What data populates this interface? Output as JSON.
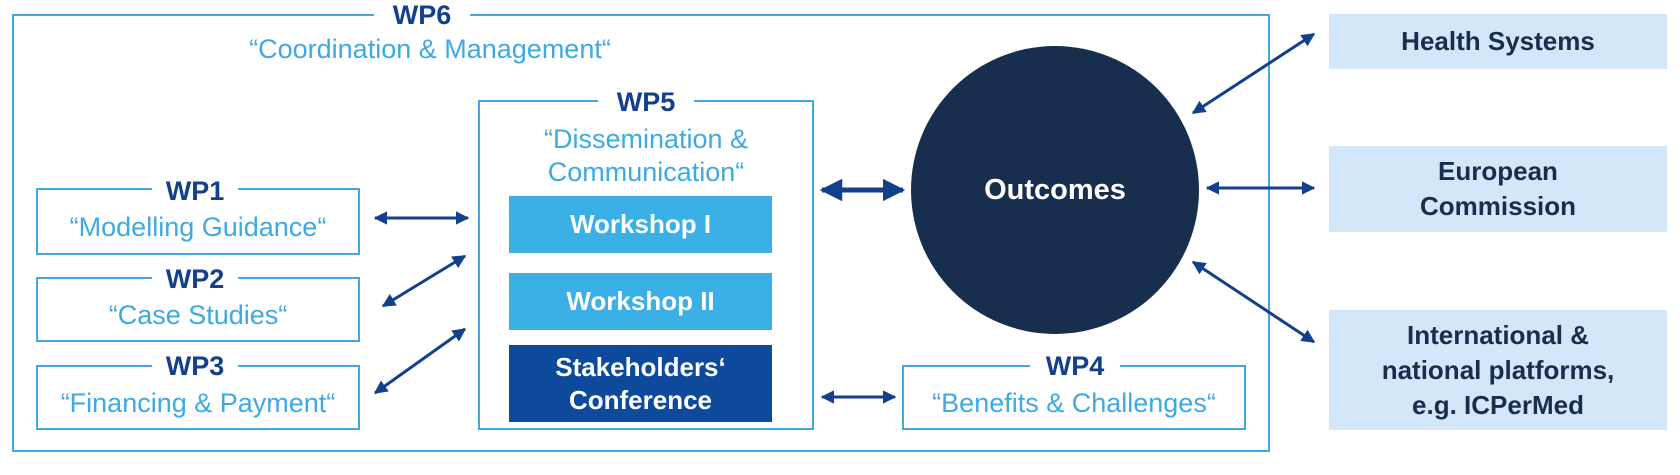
{
  "colors": {
    "light_blue": "#3ea9e3",
    "navy": "#12408c",
    "dark_navy": "#172e4e",
    "pale_blue": "#d3e7f8",
    "workshop_blue": "#3ab0e6",
    "conference_blue": "#0d4a9b"
  },
  "wp6": {
    "title": "WP6",
    "subtitle": "“Coordination & Management“"
  },
  "wp1": {
    "title": "WP1",
    "subtitle": "“Modelling Guidance“"
  },
  "wp2": {
    "title": "WP2",
    "subtitle": "“Case Studies“"
  },
  "wp3": {
    "title": "WP3",
    "subtitle": "“Financing & Payment“"
  },
  "wp5": {
    "title": "WP5",
    "subtitle_line1": "“Dissemination &",
    "subtitle_line2": "Communication“",
    "workshop1": "Workshop I",
    "workshop2": "Workshop II",
    "conference_line1": "Stakeholders‘",
    "conference_line2": "Conference"
  },
  "wp4": {
    "title": "WP4",
    "subtitle": "“Benefits & Challenges“"
  },
  "outcomes": {
    "label": "Outcomes"
  },
  "targets": {
    "health": "Health Systems",
    "ec_line1": "European",
    "ec_line2": "Commission",
    "intl_line1": "International &",
    "intl_line2": "national platforms,",
    "intl_line3": "e.g. ICPerMed"
  }
}
